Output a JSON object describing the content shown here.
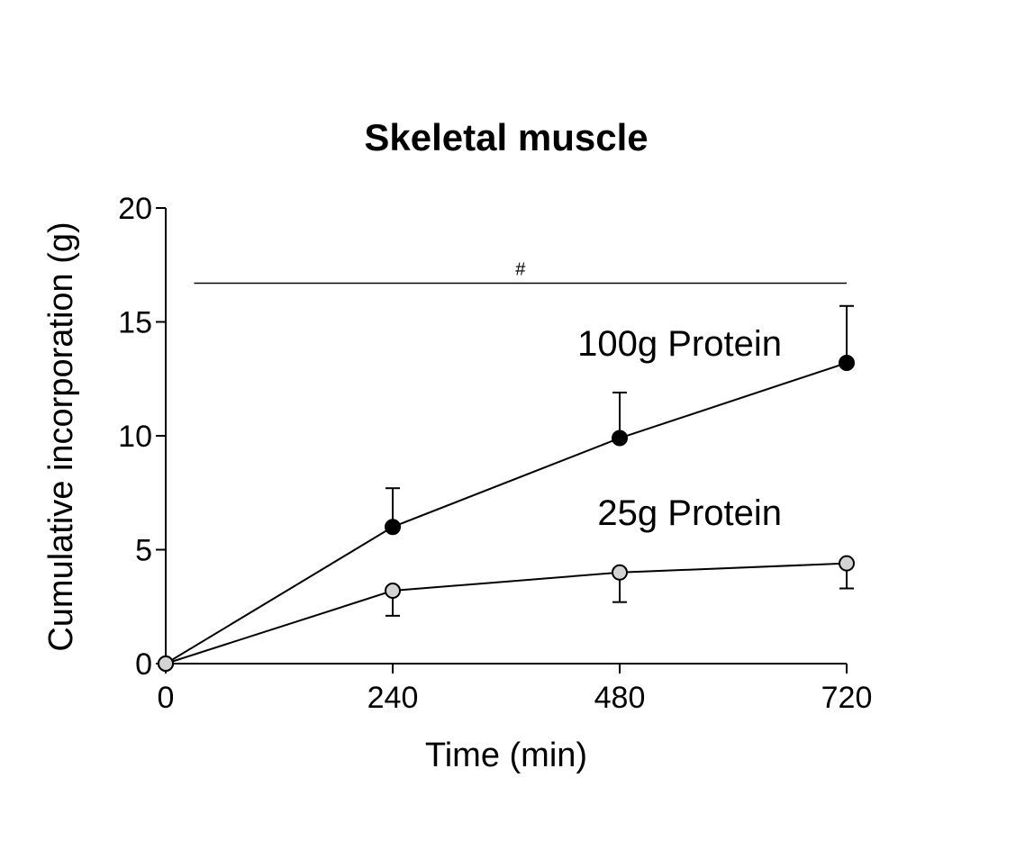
{
  "chart_data": {
    "type": "line",
    "title": "Skeletal muscle",
    "xlabel": "Time (min)",
    "ylabel": "Cumulative incorporation (g)",
    "x": [
      0,
      240,
      480,
      720
    ],
    "xticks": [
      "0",
      "240",
      "480",
      "720"
    ],
    "xlim": [
      0,
      720
    ],
    "ylim": [
      0,
      20
    ],
    "yticks": [
      "0",
      "5",
      "10",
      "15",
      "20"
    ],
    "grid": false,
    "series": [
      {
        "name": "100g Protein",
        "values": [
          0,
          6.0,
          9.9,
          13.2
        ],
        "error": [
          0,
          1.7,
          2.0,
          2.5
        ],
        "error_direction": "up",
        "marker_color": "#000000"
      },
      {
        "name": "25g Protein",
        "values": [
          0,
          3.2,
          4.0,
          4.4
        ],
        "error": [
          0,
          1.1,
          1.3,
          1.1
        ],
        "error_direction": "down",
        "marker_color": "#d3d3d3"
      }
    ],
    "annotations": [
      {
        "text": "#",
        "x_start": 30,
        "x_end": 720,
        "y": 16.7
      }
    ]
  }
}
